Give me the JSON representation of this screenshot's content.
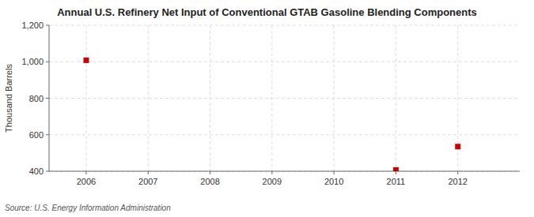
{
  "chart_data": {
    "type": "scatter",
    "title": "Annual U.S. Refinery Net Input of Conventional GTAB Gasoline Blending Components",
    "y_label": "Thousand Barrels",
    "source": "Source: U.S. Energy Information Administration",
    "x": [
      2006,
      2011,
      2012
    ],
    "values": [
      1008,
      407,
      535
    ],
    "color": "#cc0000",
    "marker": "square",
    "xlim": [
      2005.4,
      2013.0
    ],
    "xticks": [
      2006,
      2007,
      2008,
      2009,
      2010,
      2011,
      2012
    ],
    "ylim": [
      400,
      1200
    ],
    "yticks": [
      400,
      600,
      800,
      {
        "value": 1000,
        "label": "1,000"
      },
      {
        "value": 1200,
        "label": "1,200"
      }
    ],
    "grid": true
  }
}
